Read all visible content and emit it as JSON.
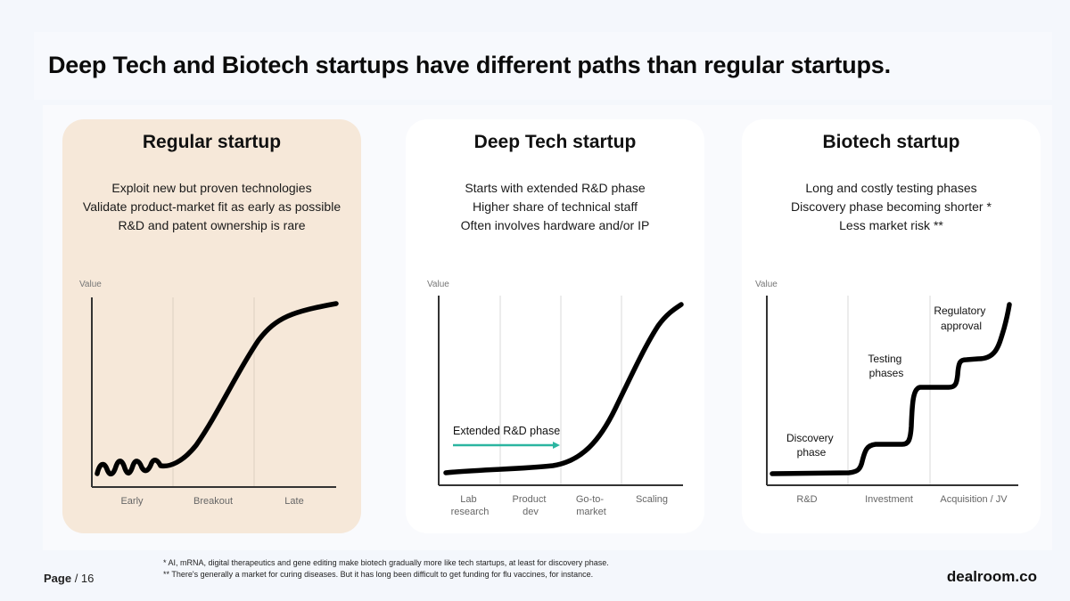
{
  "slide": {
    "title": "Deep Tech and Biotech startups have different paths than regular startups."
  },
  "cards": [
    {
      "title": "Regular startup",
      "lines": [
        "Exploit new but proven technologies",
        "Validate product-market fit as early as possible",
        "R&D and patent ownership is rare"
      ],
      "background": "#f6e8d9"
    },
    {
      "title": "Deep Tech startup",
      "lines": [
        "Starts with extended R&D phase",
        "Higher share of technical staff",
        "Often involves hardware and/or IP"
      ],
      "background": "#ffffff"
    },
    {
      "title": "Biotech startup",
      "lines": [
        "Long and costly testing phases",
        "Discovery phase becoming shorter *",
        "Less market risk **"
      ],
      "background": "#ffffff"
    }
  ],
  "chart_data": [
    {
      "type": "line",
      "title": "Regular startup",
      "ylabel": "Value",
      "categories": [
        "Early",
        "Breakout",
        "Late"
      ],
      "shape": "wavy start, then S-curve growth",
      "annotations": []
    },
    {
      "type": "line",
      "title": "Deep Tech startup",
      "ylabel": "Value",
      "categories": [
        [
          "Lab",
          "research"
        ],
        [
          "Product",
          "dev"
        ],
        [
          "Go-to-",
          "market"
        ],
        [
          "Scaling"
        ]
      ],
      "shape": "long flat R&D phase, then steep growth",
      "annotations": [
        "Extended R&D phase"
      ],
      "arrow_color": "#2bb5a0"
    },
    {
      "type": "line",
      "title": "Biotech startup",
      "ylabel": "Value",
      "categories": [
        "R&D",
        "Investment",
        "Acquisition / JV"
      ],
      "shape": "staircase with steps",
      "annotations": [
        [
          "Discovery",
          "phase"
        ],
        [
          "Testing",
          "phases"
        ],
        [
          "Regulatory",
          "approval"
        ]
      ]
    }
  ],
  "footer": {
    "page_label": "Page",
    "page_number": "/ 16",
    "footnote1": "* AI, mRNA, digital therapeutics and gene editing make biotech gradually more like tech startups, at least for discovery phase.",
    "footnote2": "** There's generally a market for curing diseases. But it has long been difficult to get funding for flu vaccines, for instance.",
    "brand": "dealroom.co"
  },
  "colors": {
    "background": "#f4f7fc",
    "accent_teal": "#2bb5a0",
    "curve": "#000000"
  }
}
